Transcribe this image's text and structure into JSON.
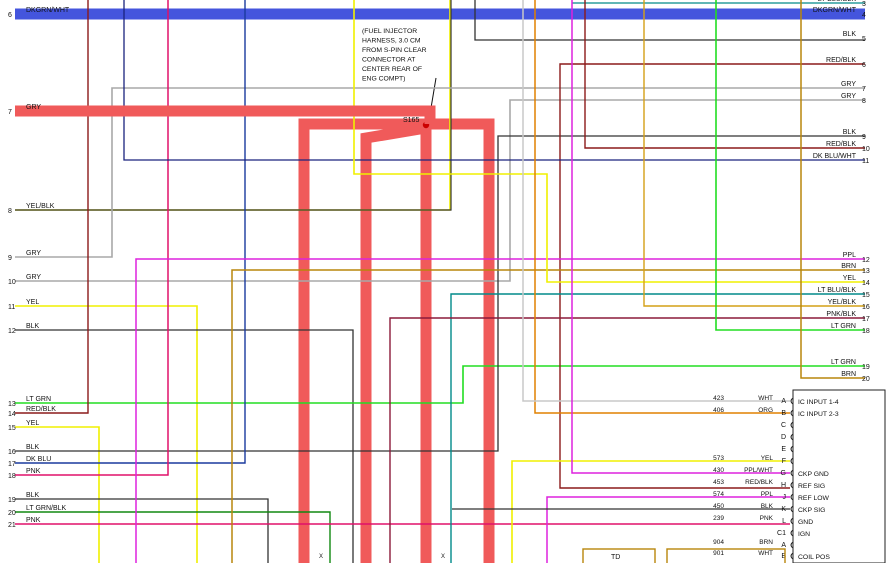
{
  "note": "(FUEL INJECTOR HARNESS, 3.0 CM FROM S-PIN CLEAR CONNECTOR AT CENTER REAR OF ENG COMPT)",
  "splice": "S165",
  "colors": {
    "DKGRNWHT": "#4455dd",
    "GRY": "#a8a8a8",
    "YEL": "#f0f000",
    "BLK": "#333333",
    "REDBLK": "#8b1a1a",
    "DKBLUWHT": "#1a237e",
    "PPL": "#dd22dd",
    "BRN": "#b8860b",
    "LTBLUBLK": "#008a8a",
    "YELBLK": "#d4a017",
    "PNKBLK": "#8b1a3a",
    "LTGRN": "#22dd22",
    "WHT": "#c8c8c8",
    "ORG": "#e08000",
    "PNK": "#e0106a",
    "LTGRNBLK": "#118811",
    "DKBLU": "#1a3a9e",
    "trunk": "#f05a5a"
  },
  "left_wires": [
    {
      "num": "6",
      "label": "DKGRN/WHT"
    },
    {
      "num": "7",
      "label": "GRY"
    },
    {
      "num": "8",
      "label": "YEL/BLK"
    },
    {
      "num": "9",
      "label": "GRY"
    },
    {
      "num": "10",
      "label": "GRY"
    },
    {
      "num": "11",
      "label": "YEL"
    },
    {
      "num": "12",
      "label": "BLK"
    },
    {
      "num": "13",
      "label": "LT GRN"
    },
    {
      "num": "14",
      "label": "RED/BLK"
    },
    {
      "num": "15",
      "label": "YEL"
    },
    {
      "num": "16",
      "label": "BLK"
    },
    {
      "num": "17",
      "label": "DK BLU"
    },
    {
      "num": "18",
      "label": "PNK"
    },
    {
      "num": "19",
      "label": "BLK"
    },
    {
      "num": "20",
      "label": "LT GRN/BLK"
    },
    {
      "num": "21",
      "label": "PNK"
    }
  ],
  "right_wires": [
    {
      "num": "3",
      "label": "LT BLU/BLK"
    },
    {
      "num": "4",
      "label": "DKGRN/WHT"
    },
    {
      "num": "5",
      "label": "BLK"
    },
    {
      "num": "6",
      "label": "RED/BLK"
    },
    {
      "num": "7",
      "label": "GRY"
    },
    {
      "num": "8",
      "label": "GRY"
    },
    {
      "num": "9",
      "label": "BLK"
    },
    {
      "num": "10",
      "label": "RED/BLK"
    },
    {
      "num": "11",
      "label": "DK BLU/WHT"
    },
    {
      "num": "12",
      "label": "PPL"
    },
    {
      "num": "13",
      "label": "BRN"
    },
    {
      "num": "14",
      "label": "YEL"
    },
    {
      "num": "15",
      "label": "LT BLU/BLK"
    },
    {
      "num": "16",
      "label": "YEL/BLK"
    },
    {
      "num": "17",
      "label": "PNK/BLK"
    },
    {
      "num": "18",
      "label": "LT GRN"
    },
    {
      "num": "19",
      "label": "LT GRN"
    },
    {
      "num": "20",
      "label": "BRN"
    }
  ],
  "connector": [
    {
      "circuit": "423",
      "color": "WHT",
      "pin": "A",
      "func": "IC INPUT 1-4"
    },
    {
      "circuit": "406",
      "color": "ORG",
      "pin": "B",
      "func": "IC INPUT 2-3"
    },
    {
      "circuit": "",
      "color": "",
      "pin": "C",
      "func": ""
    },
    {
      "circuit": "",
      "color": "",
      "pin": "D",
      "func": ""
    },
    {
      "circuit": "",
      "color": "",
      "pin": "E",
      "func": ""
    },
    {
      "circuit": "573",
      "color": "YEL",
      "pin": "F",
      "func": ""
    },
    {
      "circuit": "430",
      "color": "PPL/WHT",
      "pin": "G",
      "func": "CKP GND"
    },
    {
      "circuit": "453",
      "color": "RED/BLK",
      "pin": "H",
      "func": "REF SIG"
    },
    {
      "circuit": "574",
      "color": "PPL",
      "pin": "J",
      "func": "REF LOW"
    },
    {
      "circuit": "450",
      "color": "BLK",
      "pin": "K",
      "func": "CKP SIG"
    },
    {
      "circuit": "239",
      "color": "PNK",
      "pin": "L",
      "func": "GND"
    },
    {
      "circuit": "",
      "color": "",
      "pin": "C1",
      "func": "IGN"
    },
    {
      "circuit": "904",
      "color": "BRN",
      "pin": "A",
      "func": ""
    },
    {
      "circuit": "901",
      "color": "WHT",
      "pin": "B",
      "func": "COIL POS"
    }
  ],
  "bottom_box": "TD"
}
